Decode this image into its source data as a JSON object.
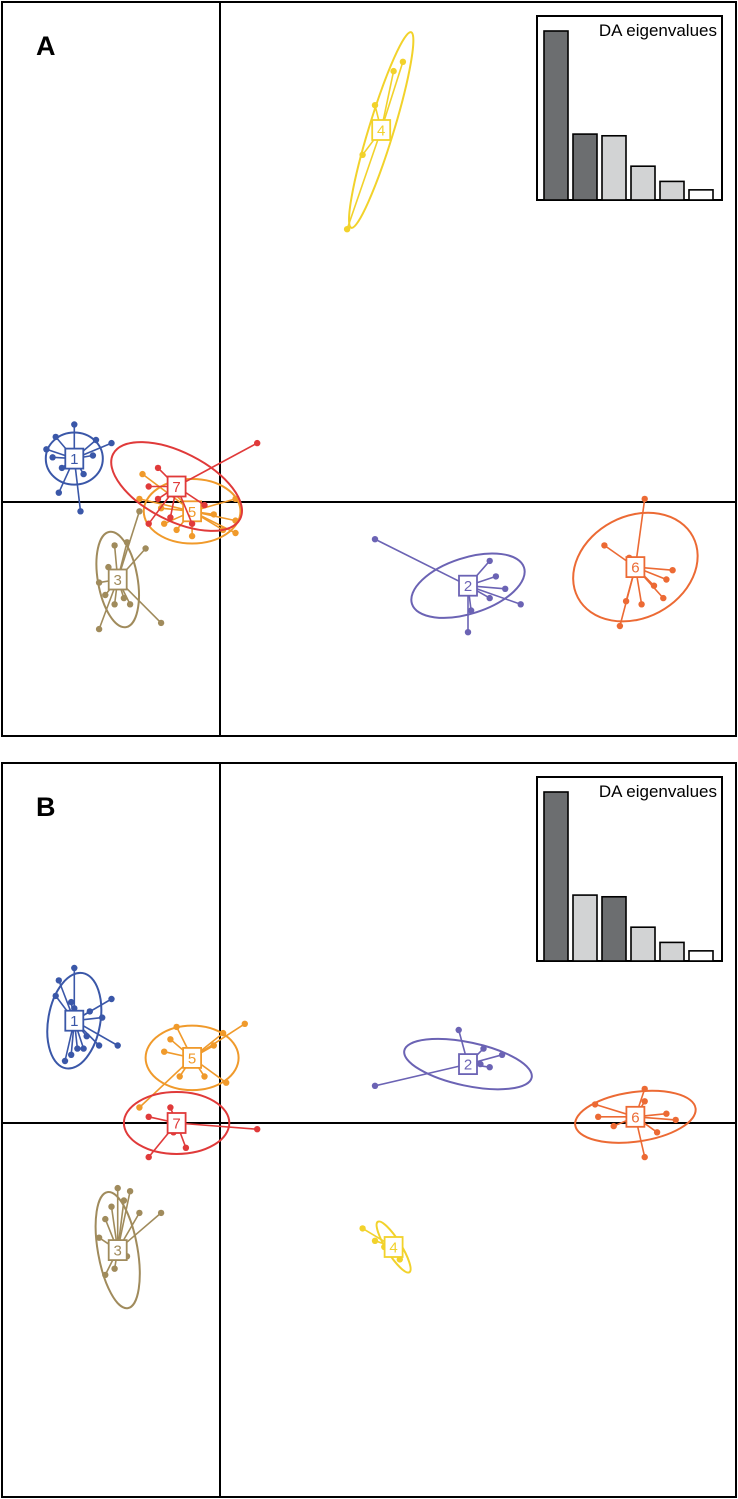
{
  "chart_data": [
    {
      "type": "scatter",
      "panel_label": "A",
      "inset": {
        "title": "DA eigenvalues",
        "values": [
          1.0,
          0.39,
          0.38,
          0.2,
          0.11,
          0.06
        ],
        "retained": [
          true,
          true,
          false,
          false,
          false,
          false
        ]
      },
      "groups": [
        {
          "label": "1",
          "color": "#3a57a8",
          "centroid": [
            -2.35,
            0.7
          ],
          "ellipse": {
            "rx": 0.46,
            "ry": 0.42,
            "angle": 0
          },
          "points": [
            [
              -2.65,
              1.05
            ],
            [
              -2.8,
              0.85
            ],
            [
              -2.7,
              0.72
            ],
            [
              -2.55,
              0.55
            ],
            [
              -2.35,
              1.25
            ],
            [
              -2.0,
              1.0
            ],
            [
              -1.75,
              0.95
            ],
            [
              -2.05,
              0.75
            ],
            [
              -2.2,
              0.45
            ],
            [
              -2.6,
              0.15
            ],
            [
              -2.25,
              -0.15
            ]
          ]
        },
        {
          "label": "2",
          "color": "#6b63b4",
          "centroid": [
            4.0,
            -1.35
          ],
          "ellipse": {
            "rx": 0.95,
            "ry": 0.45,
            "angle": 18
          },
          "points": [
            [
              2.5,
              -0.6
            ],
            [
              4.35,
              -0.95
            ],
            [
              4.45,
              -1.2
            ],
            [
              4.6,
              -1.4
            ],
            [
              4.35,
              -1.55
            ],
            [
              4.05,
              -1.75
            ],
            [
              4.85,
              -1.65
            ],
            [
              4.0,
              -2.1
            ]
          ]
        },
        {
          "label": "3",
          "color": "#a08b5c",
          "centroid": [
            -1.65,
            -1.25
          ],
          "ellipse": {
            "rx": 0.32,
            "ry": 0.78,
            "angle": 10
          },
          "points": [
            [
              -1.7,
              -0.7
            ],
            [
              -1.5,
              -0.65
            ],
            [
              -1.2,
              -0.75
            ],
            [
              -1.8,
              -1.05
            ],
            [
              -1.95,
              -1.3
            ],
            [
              -1.85,
              -1.5
            ],
            [
              -1.7,
              -1.65
            ],
            [
              -1.55,
              -1.55
            ],
            [
              -1.45,
              -1.65
            ],
            [
              -0.95,
              -1.95
            ],
            [
              -1.95,
              -2.05
            ],
            [
              -1.3,
              -0.15
            ]
          ]
        },
        {
          "label": "4",
          "color": "#f2d22b",
          "centroid": [
            2.6,
            6.0
          ],
          "ellipse": {
            "rx": 1.65,
            "ry": 0.2,
            "angle": 73
          },
          "points": [
            [
              2.5,
              6.4
            ],
            [
              2.8,
              6.95
            ],
            [
              2.95,
              7.1
            ],
            [
              2.5,
              5.95
            ],
            [
              2.3,
              5.6
            ],
            [
              2.05,
              4.4
            ]
          ]
        },
        {
          "label": "5",
          "color": "#f09a2b",
          "centroid": [
            -0.45,
            -0.15
          ],
          "ellipse": {
            "rx": 0.78,
            "ry": 0.52,
            "angle": 0
          },
          "points": [
            [
              -1.25,
              0.45
            ],
            [
              -1.3,
              0.05
            ],
            [
              -0.95,
              -0.1
            ],
            [
              -0.75,
              0.15
            ],
            [
              -0.9,
              -0.35
            ],
            [
              -0.7,
              -0.45
            ],
            [
              -0.45,
              -0.55
            ],
            [
              -0.1,
              -0.2
            ],
            [
              0.25,
              0.05
            ],
            [
              0.25,
              -0.3
            ],
            [
              0.05,
              -0.45
            ],
            [
              0.25,
              -0.5
            ]
          ]
        },
        {
          "label": "7",
          "color": "#e03a3a",
          "centroid": [
            -0.7,
            0.25
          ],
          "ellipse": {
            "rx": 1.15,
            "ry": 0.55,
            "angle": -27
          },
          "points": [
            [
              0.6,
              0.95
            ],
            [
              -1.0,
              0.55
            ],
            [
              -1.15,
              0.25
            ],
            [
              -1.0,
              0.05
            ],
            [
              -1.15,
              -0.35
            ],
            [
              -0.8,
              -0.25
            ],
            [
              -0.45,
              -0.35
            ],
            [
              -0.25,
              -0.05
            ]
          ]
        },
        {
          "label": "6",
          "color": "#ec6a34",
          "centroid": [
            6.7,
            -1.05
          ],
          "ellipse": {
            "rx": 1.05,
            "ry": 0.82,
            "angle": 28
          },
          "points": [
            [
              6.85,
              0.05
            ],
            [
              6.2,
              -0.7
            ],
            [
              6.6,
              -0.9
            ],
            [
              7.0,
              -1.35
            ],
            [
              7.15,
              -1.55
            ],
            [
              6.8,
              -1.65
            ],
            [
              6.55,
              -1.6
            ],
            [
              6.45,
              -2.0
            ],
            [
              7.2,
              -1.25
            ],
            [
              7.3,
              -1.1
            ]
          ]
        }
      ]
    },
    {
      "type": "scatter",
      "panel_label": "B",
      "inset": {
        "title": "DA eigenvalues",
        "values": [
          1.0,
          0.39,
          0.38,
          0.2,
          0.11,
          0.06
        ],
        "retained": [
          true,
          false,
          true,
          false,
          false,
          false
        ]
      },
      "groups": [
        {
          "label": "1",
          "color": "#3a57a8",
          "centroid": [
            -2.35,
            1.65
          ],
          "ellipse": {
            "rx": 0.42,
            "ry": 0.78,
            "angle": -10
          },
          "points": [
            [
              -2.6,
              2.3
            ],
            [
              -2.35,
              2.5
            ],
            [
              -2.65,
              2.05
            ],
            [
              -2.4,
              1.95
            ],
            [
              -2.35,
              1.85
            ],
            [
              -2.1,
              1.8
            ],
            [
              -1.9,
              1.7
            ],
            [
              -1.75,
              2.0
            ],
            [
              -2.15,
              1.4
            ],
            [
              -1.95,
              1.25
            ],
            [
              -1.65,
              1.25
            ],
            [
              -2.5,
              1.0
            ],
            [
              -2.4,
              1.1
            ],
            [
              -2.3,
              1.2
            ],
            [
              -2.2,
              1.2
            ]
          ]
        },
        {
          "label": "2",
          "color": "#6b63b4",
          "centroid": [
            4.0,
            0.95
          ],
          "ellipse": {
            "rx": 1.05,
            "ry": 0.35,
            "angle": -12
          },
          "points": [
            [
              3.85,
              1.5
            ],
            [
              4.25,
              1.2
            ],
            [
              4.55,
              1.1
            ],
            [
              4.35,
              0.9
            ],
            [
              4.2,
              0.95
            ],
            [
              2.5,
              0.6
            ]
          ]
        },
        {
          "label": "3",
          "color": "#a08b5c",
          "centroid": [
            -1.65,
            -2.05
          ],
          "ellipse": {
            "rx": 0.32,
            "ry": 0.95,
            "angle": 10
          },
          "points": [
            [
              -1.45,
              -1.1
            ],
            [
              -1.55,
              -1.25
            ],
            [
              -1.75,
              -1.35
            ],
            [
              -1.3,
              -1.45
            ],
            [
              -1.85,
              -1.55
            ],
            [
              -1.95,
              -1.85
            ],
            [
              -1.75,
              -2.15
            ],
            [
              -1.5,
              -2.15
            ],
            [
              -1.7,
              -2.35
            ],
            [
              -1.85,
              -2.45
            ],
            [
              -0.95,
              -1.45
            ],
            [
              -1.65,
              -1.05
            ]
          ]
        },
        {
          "label": "4",
          "color": "#f2d22b",
          "centroid": [
            2.8,
            -2.0
          ],
          "ellipse": {
            "rx": 0.48,
            "ry": 0.12,
            "angle": -58
          },
          "points": [
            [
              2.3,
              -1.7
            ],
            [
              2.5,
              -1.9
            ],
            [
              2.65,
              -2.0
            ],
            [
              2.9,
              -2.2
            ]
          ]
        },
        {
          "label": "5",
          "color": "#f09a2b",
          "centroid": [
            -0.45,
            1.05
          ],
          "ellipse": {
            "rx": 0.75,
            "ry": 0.52,
            "angle": 0
          },
          "points": [
            [
              -0.9,
              1.15
            ],
            [
              -0.8,
              1.35
            ],
            [
              -0.7,
              1.55
            ],
            [
              -0.1,
              1.25
            ],
            [
              0.05,
              1.45
            ],
            [
              0.4,
              1.6
            ],
            [
              -0.25,
              0.75
            ],
            [
              0.1,
              0.65
            ],
            [
              -0.65,
              0.75
            ],
            [
              -1.3,
              0.25
            ]
          ]
        },
        {
          "label": "7",
          "color": "#e03a3a",
          "centroid": [
            -0.7,
            0.0
          ],
          "ellipse": {
            "rx": 0.85,
            "ry": 0.5,
            "angle": 0
          },
          "points": [
            [
              -1.15,
              0.1
            ],
            [
              -0.8,
              0.25
            ],
            [
              -0.75,
              -0.15
            ],
            [
              -0.55,
              -0.4
            ],
            [
              -1.15,
              -0.55
            ],
            [
              0.6,
              -0.1
            ]
          ]
        },
        {
          "label": "6",
          "color": "#ec6a34",
          "centroid": [
            6.7,
            0.1
          ],
          "ellipse": {
            "rx": 0.98,
            "ry": 0.4,
            "angle": 8
          },
          "points": [
            [
              6.85,
              0.55
            ],
            [
              6.85,
              0.35
            ],
            [
              6.05,
              0.3
            ],
            [
              6.1,
              0.1
            ],
            [
              7.2,
              0.15
            ],
            [
              7.35,
              0.05
            ],
            [
              7.05,
              -0.15
            ],
            [
              6.35,
              -0.05
            ],
            [
              6.85,
              -0.55
            ]
          ]
        }
      ]
    }
  ]
}
